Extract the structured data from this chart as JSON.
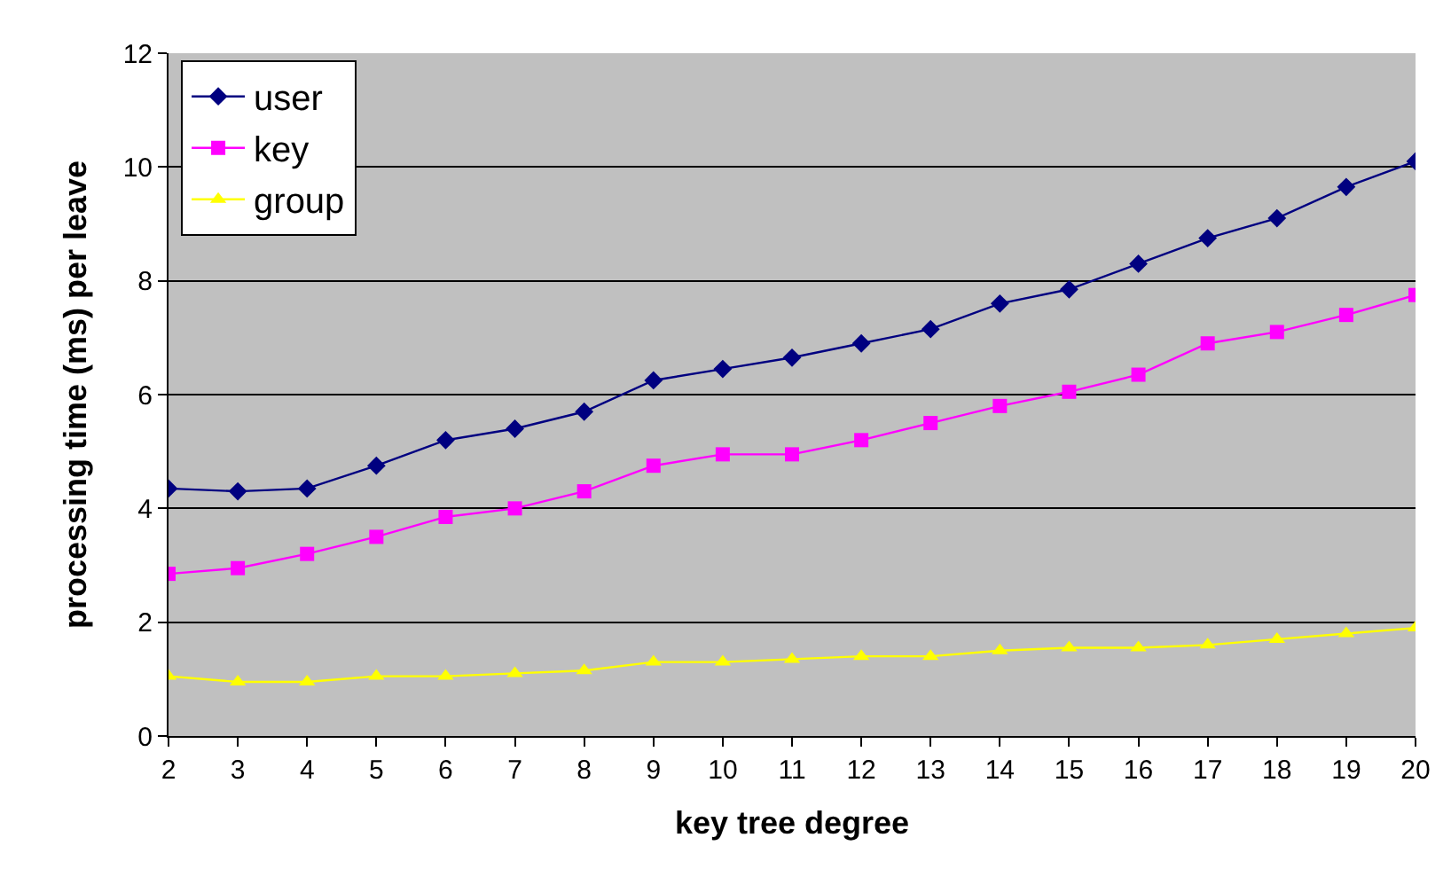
{
  "chart_data": {
    "type": "line",
    "xlabel": "key tree degree",
    "ylabel": "processing time (ms) per leave",
    "x": [
      2,
      3,
      4,
      5,
      6,
      7,
      8,
      9,
      10,
      11,
      12,
      13,
      14,
      15,
      16,
      17,
      18,
      19,
      20
    ],
    "series": [
      {
        "name": "user",
        "color": "#000080",
        "marker": "diamond",
        "values": [
          4.35,
          4.3,
          4.35,
          4.75,
          5.2,
          5.4,
          5.7,
          6.25,
          6.45,
          6.65,
          6.9,
          7.15,
          7.6,
          7.85,
          8.3,
          8.75,
          9.1,
          9.65,
          10.1
        ]
      },
      {
        "name": "key",
        "color": "#ff00ff",
        "marker": "square",
        "values": [
          2.85,
          2.95,
          3.2,
          3.5,
          3.85,
          4.0,
          4.3,
          4.75,
          4.95,
          4.95,
          5.2,
          5.5,
          5.8,
          6.05,
          6.35,
          6.9,
          7.1,
          7.4,
          7.75
        ]
      },
      {
        "name": "group",
        "color": "#ffff00",
        "marker": "triangle",
        "values": [
          1.05,
          0.95,
          0.95,
          1.05,
          1.05,
          1.1,
          1.15,
          1.3,
          1.3,
          1.35,
          1.4,
          1.4,
          1.5,
          1.55,
          1.55,
          1.6,
          1.7,
          1.8,
          1.9
        ]
      }
    ],
    "xlim": [
      2,
      20
    ],
    "xticks": [
      2,
      3,
      4,
      5,
      6,
      7,
      8,
      9,
      10,
      11,
      12,
      13,
      14,
      15,
      16,
      17,
      18,
      19,
      20
    ],
    "ylim": [
      0,
      12
    ],
    "yticks": [
      0,
      2,
      4,
      6,
      8,
      10,
      12
    ],
    "grid": "y",
    "legend": "top left",
    "line_style": "solid"
  }
}
